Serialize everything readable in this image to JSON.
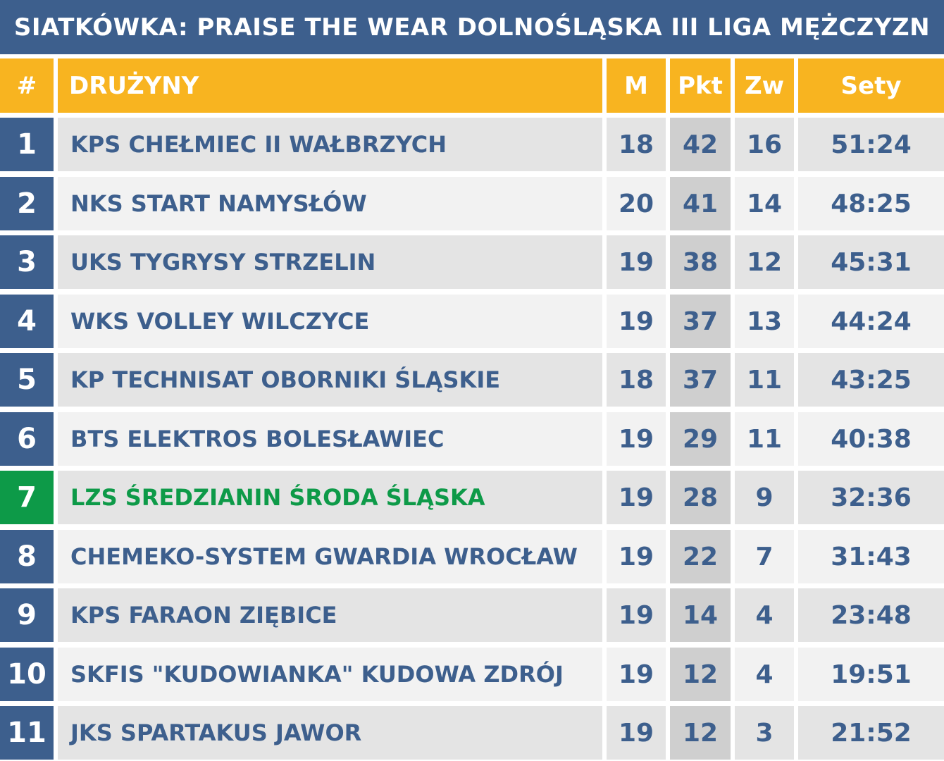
{
  "title": "SIATKÓWKA: PRAISE THE WEAR DOLNOŚLĄSKA III LIGA MĘŻCZYZN",
  "colors": {
    "header_blue": "#3d5f8d",
    "header_yellow": "#f8b420",
    "highlight_green": "#0d9a48",
    "row_odd": "#e4e4e4",
    "row_even": "#f2f2f2",
    "pkt_column": "#cfcfcf"
  },
  "columns": {
    "rank": "#",
    "team": "DRUŻYNY",
    "matches": "M",
    "points": "Pkt",
    "wins": "Zw",
    "sets": "Sety"
  },
  "highlighted_rank": "7",
  "rows": [
    {
      "rank": "1",
      "team": "KPS CHEŁMIEC II WAŁBRZYCH",
      "m": "18",
      "pkt": "42",
      "zw": "16",
      "sety": "51:24"
    },
    {
      "rank": "2",
      "team": "NKS START NAMYSŁÓW",
      "m": "20",
      "pkt": "41",
      "zw": "14",
      "sety": "48:25"
    },
    {
      "rank": "3",
      "team": "UKS TYGRYSY STRZELIN",
      "m": "19",
      "pkt": "38",
      "zw": "12",
      "sety": "45:31"
    },
    {
      "rank": "4",
      "team": "WKS VOLLEY WILCZYCE",
      "m": "19",
      "pkt": "37",
      "zw": "13",
      "sety": "44:24"
    },
    {
      "rank": "5",
      "team": "KP TECHNISAT OBORNIKI ŚLĄSKIE",
      "m": "18",
      "pkt": "37",
      "zw": "11",
      "sety": "43:25"
    },
    {
      "rank": "6",
      "team": "BTS ELEKTROS BOLESŁAWIEC",
      "m": "19",
      "pkt": "29",
      "zw": "11",
      "sety": "40:38"
    },
    {
      "rank": "7",
      "team": "LZS ŚREDZIANIN ŚRODA ŚLĄSKA",
      "m": "19",
      "pkt": "28",
      "zw": "9",
      "sety": "32:36"
    },
    {
      "rank": "8",
      "team": "CHEMEKO-SYSTEM GWARDIA WROCŁAW",
      "m": "19",
      "pkt": "22",
      "zw": "7",
      "sety": "31:43"
    },
    {
      "rank": "9",
      "team": "KPS FARAON ZIĘBICE",
      "m": "19",
      "pkt": "14",
      "zw": "4",
      "sety": "23:48"
    },
    {
      "rank": "10",
      "team": "SKFIS \"KUDOWIANKA\" KUDOWA ZDRÓJ",
      "m": "19",
      "pkt": "12",
      "zw": "4",
      "sety": "19:51"
    },
    {
      "rank": "11",
      "team": "JKS SPARTAKUS JAWOR",
      "m": "19",
      "pkt": "12",
      "zw": "3",
      "sety": "21:52"
    }
  ]
}
